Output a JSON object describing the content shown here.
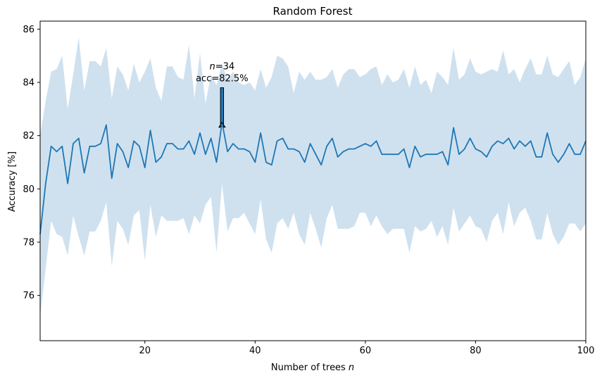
{
  "chart_data": {
    "type": "line",
    "title": "Random Forest",
    "xlabel": "Number of trees",
    "xlabel_var": "n",
    "ylabel": "Accuracy [%]",
    "xlim": [
      1,
      100
    ],
    "ylim": [
      74.3,
      86.3
    ],
    "xticks": [
      20,
      40,
      60,
      80,
      100
    ],
    "yticks": [
      76,
      78,
      80,
      82,
      84,
      86
    ],
    "grid": false,
    "series": [
      {
        "color": "#1f77b4",
        "band_color": "#cfe1ef",
        "x": [
          1,
          2,
          3,
          4,
          5,
          6,
          7,
          8,
          9,
          10,
          11,
          12,
          13,
          14,
          15,
          16,
          17,
          18,
          19,
          20,
          21,
          22,
          23,
          24,
          25,
          26,
          27,
          28,
          29,
          30,
          31,
          32,
          33,
          34,
          35,
          36,
          37,
          38,
          39,
          40,
          41,
          42,
          43,
          44,
          45,
          46,
          47,
          48,
          49,
          50,
          51,
          52,
          53,
          54,
          55,
          56,
          57,
          58,
          59,
          60,
          61,
          62,
          63,
          64,
          65,
          66,
          67,
          68,
          69,
          70,
          71,
          72,
          73,
          74,
          75,
          76,
          77,
          78,
          79,
          80,
          81,
          82,
          83,
          84,
          85,
          86,
          87,
          88,
          89,
          90,
          91,
          92,
          93,
          94,
          95,
          96,
          97,
          98,
          99,
          100
        ],
        "values": [
          78.3,
          80.2,
          81.6,
          81.4,
          81.6,
          80.2,
          81.7,
          81.9,
          80.6,
          81.6,
          81.6,
          81.7,
          82.4,
          80.4,
          81.7,
          81.4,
          80.8,
          81.8,
          81.6,
          80.8,
          82.2,
          81.0,
          81.2,
          81.7,
          81.7,
          81.5,
          81.5,
          81.8,
          81.3,
          82.1,
          81.3,
          81.9,
          81.0,
          82.5,
          81.4,
          81.7,
          81.5,
          81.5,
          81.4,
          81.0,
          82.1,
          81.0,
          80.9,
          81.8,
          81.9,
          81.5,
          81.5,
          81.4,
          81.0,
          81.7,
          81.3,
          80.9,
          81.6,
          81.9,
          81.2,
          81.4,
          81.5,
          81.5,
          81.6,
          81.7,
          81.6,
          81.8,
          81.3,
          81.3,
          81.3,
          81.3,
          81.5,
          80.8,
          81.6,
          81.2,
          81.3,
          81.3,
          81.3,
          81.4,
          80.9,
          82.3,
          81.3,
          81.5,
          81.9,
          81.5,
          81.4,
          81.2,
          81.6,
          81.8,
          81.7,
          81.9,
          81.5,
          81.8,
          81.6,
          81.8,
          81.2,
          81.2,
          82.1,
          81.3,
          81.0,
          81.3,
          81.7,
          81.3,
          81.3,
          81.8
        ],
        "upper": [
          82.0,
          83.3,
          84.4,
          84.5,
          85.0,
          83.0,
          84.3,
          85.7,
          83.7,
          84.8,
          84.8,
          84.6,
          85.3,
          83.4,
          84.6,
          84.3,
          83.7,
          84.7,
          84.0,
          84.4,
          84.9,
          83.8,
          83.3,
          84.6,
          84.6,
          84.2,
          84.1,
          85.4,
          83.4,
          85.1,
          83.2,
          84.3,
          83.9,
          84.7,
          84.1,
          84.4,
          84.0,
          83.9,
          84.0,
          83.7,
          84.5,
          83.8,
          84.2,
          85.0,
          84.9,
          84.6,
          83.6,
          84.4,
          84.1,
          84.4,
          84.1,
          84.1,
          84.2,
          84.5,
          83.8,
          84.3,
          84.5,
          84.5,
          84.2,
          84.3,
          84.5,
          84.6,
          83.9,
          84.3,
          84.0,
          84.1,
          84.5,
          83.8,
          84.6,
          83.9,
          84.1,
          83.6,
          84.4,
          84.2,
          83.9,
          85.3,
          84.1,
          84.3,
          84.9,
          84.4,
          84.3,
          84.4,
          84.5,
          84.4,
          85.2,
          84.3,
          84.5,
          84.0,
          84.5,
          84.9,
          84.3,
          84.3,
          85.0,
          84.3,
          84.2,
          84.5,
          84.8,
          83.9,
          84.2,
          84.9
        ],
        "lower": [
          75.2,
          77.0,
          78.8,
          78.3,
          78.2,
          77.5,
          79.0,
          78.2,
          77.5,
          78.4,
          78.4,
          78.8,
          79.5,
          77.1,
          78.8,
          78.5,
          77.9,
          79.0,
          79.2,
          77.3,
          79.4,
          78.2,
          79.0,
          78.8,
          78.8,
          78.8,
          78.9,
          78.3,
          79.0,
          78.7,
          79.4,
          79.7,
          77.6,
          80.2,
          78.4,
          78.9,
          78.9,
          79.1,
          78.7,
          78.3,
          79.6,
          78.1,
          77.6,
          78.7,
          78.9,
          78.5,
          79.1,
          78.3,
          77.9,
          79.1,
          78.5,
          77.8,
          78.9,
          79.4,
          78.5,
          78.5,
          78.5,
          78.6,
          79.1,
          79.1,
          78.6,
          79.0,
          78.6,
          78.3,
          78.5,
          78.5,
          78.5,
          77.6,
          78.6,
          78.4,
          78.5,
          78.8,
          78.2,
          78.6,
          77.9,
          79.3,
          78.4,
          78.7,
          79.0,
          78.6,
          78.5,
          78.0,
          78.8,
          79.1,
          78.3,
          79.5,
          78.6,
          79.1,
          79.3,
          78.8,
          78.1,
          78.1,
          79.1,
          78.3,
          77.9,
          78.2,
          78.7,
          78.7,
          78.4,
          78.7
        ]
      }
    ],
    "annotation": {
      "line1_var": "n",
      "line1_value": "=34",
      "line2": "acc=82.5%",
      "point_x": 34,
      "point_y": 82.5,
      "text_y": 83.8
    }
  }
}
